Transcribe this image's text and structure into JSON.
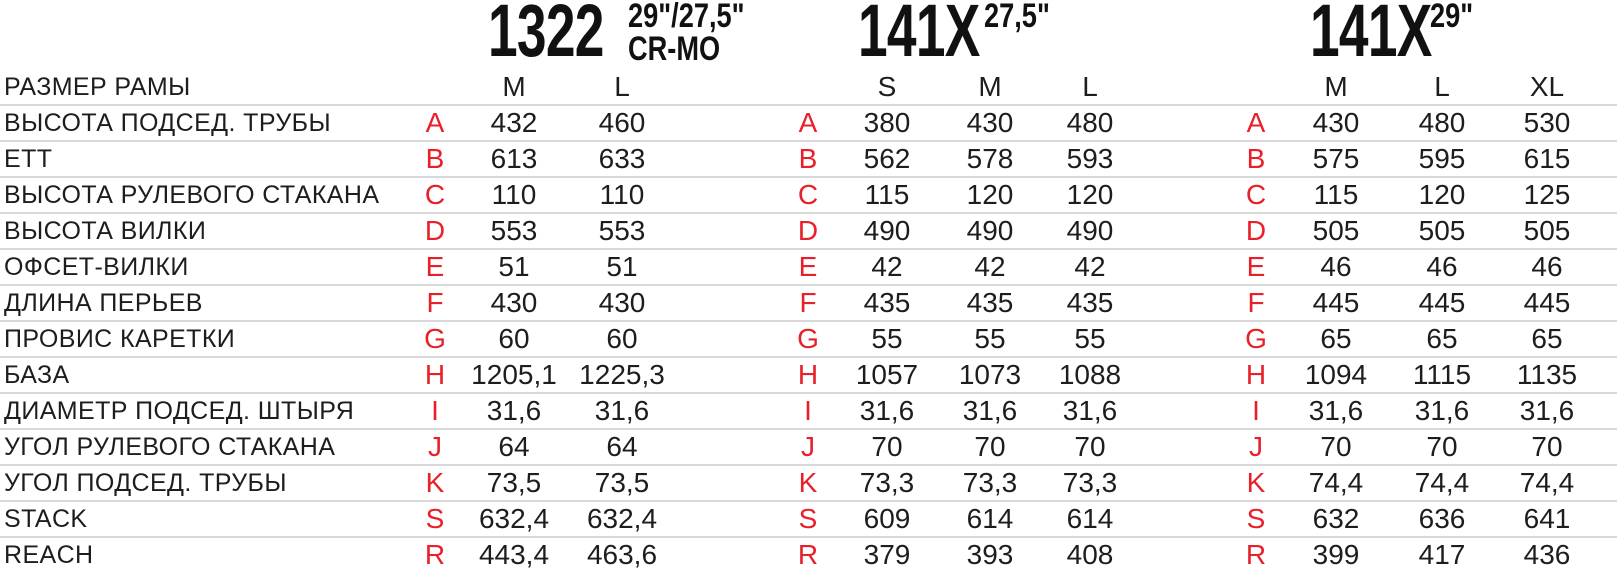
{
  "header": {
    "models": [
      {
        "name": "1322",
        "spec_line1": "29\"/27,5\"",
        "spec_line2": "CR-MO",
        "sizes": [
          "M",
          "L"
        ]
      },
      {
        "name": "141X",
        "spec_line1": "27,5\"",
        "spec_line2": "",
        "sizes": [
          "S",
          "M",
          "L"
        ]
      },
      {
        "name": "141X",
        "spec_line1": "29\"",
        "spec_line2": "",
        "sizes": [
          "M",
          "L",
          "XL"
        ]
      }
    ]
  },
  "table": {
    "row_header_label": "РАЗМЕР РАМЫ",
    "rows": [
      {
        "label": "ВЫСОТА ПОДСЕД. ТРУБЫ",
        "code": "A",
        "values": [
          [
            "432",
            "460"
          ],
          [
            "380",
            "430",
            "480"
          ],
          [
            "430",
            "480",
            "530"
          ]
        ]
      },
      {
        "label": "ETT",
        "code": "B",
        "values": [
          [
            "613",
            "633"
          ],
          [
            "562",
            "578",
            "593"
          ],
          [
            "575",
            "595",
            "615"
          ]
        ]
      },
      {
        "label": "ВЫСОТА РУЛЕВОГО СТАКАНА",
        "code": "C",
        "values": [
          [
            "110",
            "110"
          ],
          [
            "115",
            "120",
            "120"
          ],
          [
            "115",
            "120",
            "125"
          ]
        ]
      },
      {
        "label": "ВЫСОТА ВИЛКИ",
        "code": "D",
        "values": [
          [
            "553",
            "553"
          ],
          [
            "490",
            "490",
            "490"
          ],
          [
            "505",
            "505",
            "505"
          ]
        ]
      },
      {
        "label": "ОФСЕТ-ВИЛКИ",
        "code": "E",
        "values": [
          [
            "51",
            "51"
          ],
          [
            "42",
            "42",
            "42"
          ],
          [
            "46",
            "46",
            "46"
          ]
        ]
      },
      {
        "label": "ДЛИНА ПЕРЬЕВ",
        "code": "F",
        "values": [
          [
            "430",
            "430"
          ],
          [
            "435",
            "435",
            "435"
          ],
          [
            "445",
            "445",
            "445"
          ]
        ]
      },
      {
        "label": "ПРОВИС КАРЕТКИ",
        "code": "G",
        "values": [
          [
            "60",
            "60"
          ],
          [
            "55",
            "55",
            "55"
          ],
          [
            "65",
            "65",
            "65"
          ]
        ]
      },
      {
        "label": "БАЗА",
        "code": "H",
        "values": [
          [
            "1205,1",
            "1225,3"
          ],
          [
            "1057",
            "1073",
            "1088"
          ],
          [
            "1094",
            "1115",
            "1135"
          ]
        ]
      },
      {
        "label": "ДИАМЕТР ПОДСЕД. ШТЫРЯ",
        "code": "I",
        "values": [
          [
            "31,6",
            "31,6"
          ],
          [
            "31,6",
            "31,6",
            "31,6"
          ],
          [
            "31,6",
            "31,6",
            "31,6"
          ]
        ]
      },
      {
        "label": "УГОЛ РУЛЕВОГО СТАКАНА",
        "code": "J",
        "values": [
          [
            "64",
            "64"
          ],
          [
            "70",
            "70",
            "70"
          ],
          [
            "70",
            "70",
            "70"
          ]
        ]
      },
      {
        "label": "УГОЛ ПОДСЕД. ТРУБЫ",
        "code": "K",
        "values": [
          [
            "73,5",
            "73,5"
          ],
          [
            "73,3",
            "73,3",
            "73,3"
          ],
          [
            "74,4",
            "74,4",
            "74,4"
          ]
        ]
      },
      {
        "label": "STACK",
        "code": "S",
        "values": [
          [
            "632,4",
            "632,4"
          ],
          [
            "609",
            "614",
            "614"
          ],
          [
            "632",
            "636",
            "641"
          ]
        ]
      },
      {
        "label": "REACH",
        "code": "R",
        "values": [
          [
            "443,4",
            "463,6"
          ],
          [
            "379",
            "393",
            "408"
          ],
          [
            "399",
            "417",
            "436"
          ]
        ]
      }
    ]
  },
  "colors": {
    "accent_red": "#e8202a",
    "text": "#1d1d1b",
    "grid_line": "#d9d9d9",
    "background": "#ffffff"
  }
}
